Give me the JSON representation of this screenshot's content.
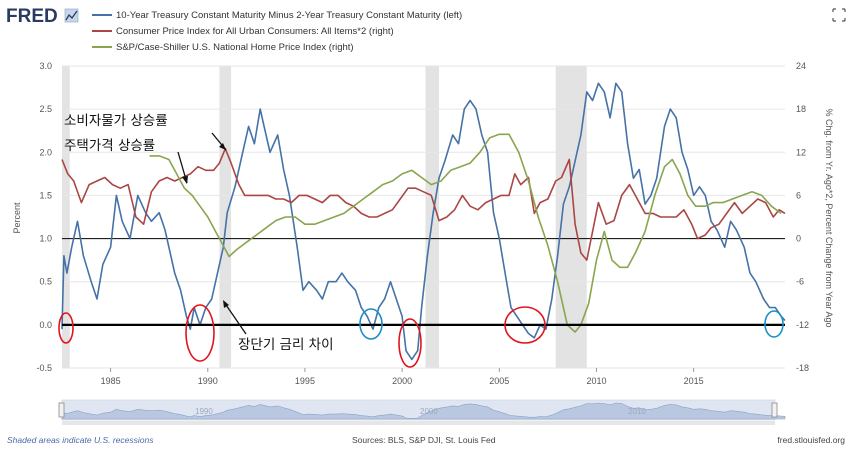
{
  "header": {
    "logo": "FRED",
    "expand_icon": "expand-icon"
  },
  "chart_data": {
    "type": "line",
    "legend": [
      "10-Year Treasury Constant Maturity Minus 2-Year Treasury Constant Maturity (left)",
      "Consumer Price Index for All Urban Consumers: All Items*2 (right)",
      "S&P/Case-Shiller U.S. National Home Price Index (right)"
    ],
    "colors": {
      "spread": "#4572a7",
      "cpi": "#aa4643",
      "hpi": "#89a54e",
      "recession": "#e3e3e3",
      "annotation": "#e0141e",
      "annotation_alt": "#1a8fc9"
    },
    "ylabel_left": "Percent",
    "ylabel_right": "% Chg. from Yr. Ago*2, Percent Change from Year Ago",
    "y_left": {
      "min": -0.5,
      "max": 3.0,
      "ticks": [
        "3.0",
        "2.5",
        "2.0",
        "1.5",
        "1.0",
        "0.5",
        "0.0",
        "-0.5"
      ]
    },
    "y_right": {
      "min": -18,
      "max": 24,
      "ticks": [
        "24",
        "18",
        "12",
        "6",
        "0",
        "-6",
        "-12",
        "-18"
      ]
    },
    "x_range": [
      1982.5,
      2019.7
    ],
    "x_ticks": [
      "1985",
      "1990",
      "1995",
      "2000",
      "2005",
      "2010",
      "2015"
    ],
    "recessions": [
      [
        1982.5,
        1982.9
      ],
      [
        1990.6,
        1991.2
      ],
      [
        2001.2,
        2001.9
      ],
      [
        2007.9,
        2009.5
      ]
    ],
    "series": [
      {
        "name": "spread",
        "points": [
          [
            1982.5,
            -0.05
          ],
          [
            1982.6,
            0.8
          ],
          [
            1982.75,
            0.6
          ],
          [
            1983.0,
            0.9
          ],
          [
            1983.3,
            1.2
          ],
          [
            1983.6,
            0.8
          ],
          [
            1984.0,
            0.5
          ],
          [
            1984.3,
            0.3
          ],
          [
            1984.6,
            0.7
          ],
          [
            1985.0,
            0.9
          ],
          [
            1985.3,
            1.5
          ],
          [
            1985.6,
            1.2
          ],
          [
            1986.0,
            1.0
          ],
          [
            1986.4,
            1.5
          ],
          [
            1986.8,
            1.3
          ],
          [
            1987.1,
            1.2
          ],
          [
            1987.5,
            1.3
          ],
          [
            1987.8,
            1.1
          ],
          [
            1988.0,
            0.9
          ],
          [
            1988.3,
            0.6
          ],
          [
            1988.6,
            0.4
          ],
          [
            1988.9,
            0.1
          ],
          [
            1989.1,
            -0.05
          ],
          [
            1989.3,
            0.2
          ],
          [
            1989.6,
            0.0
          ],
          [
            1989.9,
            0.2
          ],
          [
            1990.2,
            0.3
          ],
          [
            1990.5,
            0.6
          ],
          [
            1990.8,
            0.9
          ],
          [
            1991.0,
            1.3
          ],
          [
            1991.4,
            1.6
          ],
          [
            1991.8,
            2.0
          ],
          [
            1992.1,
            2.3
          ],
          [
            1992.4,
            2.1
          ],
          [
            1992.7,
            2.5
          ],
          [
            1992.9,
            2.3
          ],
          [
            1993.2,
            2.0
          ],
          [
            1993.6,
            2.2
          ],
          [
            1993.9,
            1.8
          ],
          [
            1994.2,
            1.5
          ],
          [
            1994.6,
            0.9
          ],
          [
            1994.9,
            0.4
          ],
          [
            1995.2,
            0.5
          ],
          [
            1995.6,
            0.4
          ],
          [
            1995.9,
            0.3
          ],
          [
            1996.2,
            0.5
          ],
          [
            1996.6,
            0.5
          ],
          [
            1996.9,
            0.6
          ],
          [
            1997.2,
            0.5
          ],
          [
            1997.6,
            0.4
          ],
          [
            1997.9,
            0.2
          ],
          [
            1998.2,
            0.1
          ],
          [
            1998.5,
            -0.05
          ],
          [
            1998.8,
            0.2
          ],
          [
            1999.1,
            0.3
          ],
          [
            1999.4,
            0.5
          ],
          [
            1999.7,
            0.3
          ],
          [
            2000.0,
            0.1
          ],
          [
            2000.2,
            -0.3
          ],
          [
            2000.5,
            -0.4
          ],
          [
            2000.8,
            -0.3
          ],
          [
            2001.0,
            0.2
          ],
          [
            2001.3,
            0.8
          ],
          [
            2001.6,
            1.3
          ],
          [
            2001.9,
            1.7
          ],
          [
            2002.2,
            1.9
          ],
          [
            2002.6,
            2.2
          ],
          [
            2002.9,
            2.1
          ],
          [
            2003.2,
            2.5
          ],
          [
            2003.5,
            2.6
          ],
          [
            2003.8,
            2.5
          ],
          [
            2004.1,
            2.2
          ],
          [
            2004.4,
            2.0
          ],
          [
            2004.7,
            1.3
          ],
          [
            2005.0,
            1.0
          ],
          [
            2005.3,
            0.6
          ],
          [
            2005.6,
            0.2
          ],
          [
            2005.9,
            0.1
          ],
          [
            2006.2,
            0.0
          ],
          [
            2006.5,
            -0.1
          ],
          [
            2006.8,
            -0.15
          ],
          [
            2007.1,
            0.0
          ],
          [
            2007.4,
            -0.05
          ],
          [
            2007.7,
            0.3
          ],
          [
            2008.0,
            0.8
          ],
          [
            2008.3,
            1.4
          ],
          [
            2008.6,
            1.6
          ],
          [
            2008.9,
            1.9
          ],
          [
            2009.2,
            2.2
          ],
          [
            2009.5,
            2.7
          ],
          [
            2009.8,
            2.6
          ],
          [
            2010.1,
            2.8
          ],
          [
            2010.4,
            2.7
          ],
          [
            2010.7,
            2.4
          ],
          [
            2011.0,
            2.8
          ],
          [
            2011.3,
            2.7
          ],
          [
            2011.6,
            2.1
          ],
          [
            2011.9,
            1.7
          ],
          [
            2012.2,
            1.8
          ],
          [
            2012.5,
            1.4
          ],
          [
            2012.8,
            1.5
          ],
          [
            2013.1,
            1.7
          ],
          [
            2013.5,
            2.3
          ],
          [
            2013.8,
            2.5
          ],
          [
            2014.1,
            2.4
          ],
          [
            2014.4,
            2.0
          ],
          [
            2014.7,
            1.8
          ],
          [
            2015.0,
            1.5
          ],
          [
            2015.3,
            1.6
          ],
          [
            2015.6,
            1.5
          ],
          [
            2015.9,
            1.2
          ],
          [
            2016.2,
            1.1
          ],
          [
            2016.6,
            0.9
          ],
          [
            2016.9,
            1.2
          ],
          [
            2017.2,
            1.1
          ],
          [
            2017.6,
            0.9
          ],
          [
            2017.9,
            0.6
          ],
          [
            2018.2,
            0.5
          ],
          [
            2018.6,
            0.3
          ],
          [
            2018.9,
            0.2
          ],
          [
            2019.2,
            0.2
          ],
          [
            2019.5,
            0.1
          ],
          [
            2019.7,
            0.05
          ]
        ]
      },
      {
        "name": "cpi",
        "points": [
          [
            1982.5,
            11
          ],
          [
            1982.8,
            9
          ],
          [
            1983.1,
            8
          ],
          [
            1983.5,
            5
          ],
          [
            1983.9,
            7.5
          ],
          [
            1984.3,
            8
          ],
          [
            1984.7,
            8.5
          ],
          [
            1985.1,
            7.5
          ],
          [
            1985.5,
            7
          ],
          [
            1985.9,
            7.5
          ],
          [
            1986.3,
            3
          ],
          [
            1986.7,
            2
          ],
          [
            1987.1,
            6.5
          ],
          [
            1987.5,
            8
          ],
          [
            1987.9,
            8.5
          ],
          [
            1988.3,
            8
          ],
          [
            1988.7,
            8.5
          ],
          [
            1989.1,
            9
          ],
          [
            1989.5,
            10
          ],
          [
            1989.9,
            9.5
          ],
          [
            1990.3,
            9.5
          ],
          [
            1990.6,
            10.5
          ],
          [
            1990.9,
            12.5
          ],
          [
            1991.2,
            10.5
          ],
          [
            1991.6,
            7.5
          ],
          [
            1991.9,
            6
          ],
          [
            1992.3,
            6
          ],
          [
            1992.7,
            6
          ],
          [
            1993.1,
            6
          ],
          [
            1993.5,
            5.5
          ],
          [
            1993.9,
            5.5
          ],
          [
            1994.3,
            5
          ],
          [
            1994.7,
            6
          ],
          [
            1995.1,
            6
          ],
          [
            1995.5,
            5.5
          ],
          [
            1995.9,
            5
          ],
          [
            1996.3,
            6
          ],
          [
            1996.7,
            6
          ],
          [
            1997.1,
            5
          ],
          [
            1997.5,
            4.5
          ],
          [
            1997.9,
            3.5
          ],
          [
            1998.3,
            3
          ],
          [
            1998.7,
            3
          ],
          [
            1999.1,
            3.5
          ],
          [
            1999.5,
            4
          ],
          [
            1999.9,
            5.5
          ],
          [
            2000.3,
            7
          ],
          [
            2000.7,
            7
          ],
          [
            2001.1,
            6.5
          ],
          [
            2001.5,
            6
          ],
          [
            2001.9,
            2.5
          ],
          [
            2002.3,
            3
          ],
          [
            2002.7,
            4
          ],
          [
            2003.1,
            6
          ],
          [
            2003.5,
            4.5
          ],
          [
            2003.9,
            4
          ],
          [
            2004.3,
            5
          ],
          [
            2004.7,
            5.5
          ],
          [
            2005.1,
            6
          ],
          [
            2005.5,
            6
          ],
          [
            2005.8,
            9
          ],
          [
            2006.1,
            7.5
          ],
          [
            2006.5,
            8.5
          ],
          [
            2006.8,
            3.5
          ],
          [
            2007.1,
            5
          ],
          [
            2007.5,
            5.5
          ],
          [
            2007.9,
            8
          ],
          [
            2008.2,
            8.5
          ],
          [
            2008.6,
            11
          ],
          [
            2008.9,
            2
          ],
          [
            2009.2,
            -2
          ],
          [
            2009.5,
            -3
          ],
          [
            2009.8,
            1
          ],
          [
            2010.1,
            5
          ],
          [
            2010.5,
            2
          ],
          [
            2010.9,
            2.5
          ],
          [
            2011.3,
            6
          ],
          [
            2011.7,
            7.5
          ],
          [
            2012.1,
            5.5
          ],
          [
            2012.5,
            3.5
          ],
          [
            2012.9,
            3.5
          ],
          [
            2013.3,
            3
          ],
          [
            2013.7,
            3
          ],
          [
            2014.1,
            3
          ],
          [
            2014.5,
            4
          ],
          [
            2014.9,
            2
          ],
          [
            2015.2,
            0
          ],
          [
            2015.6,
            0.5
          ],
          [
            2015.9,
            1.5
          ],
          [
            2016.3,
            2
          ],
          [
            2016.7,
            3.5
          ],
          [
            2017.1,
            5
          ],
          [
            2017.5,
            3.5
          ],
          [
            2017.9,
            4.5
          ],
          [
            2018.3,
            5.5
          ],
          [
            2018.7,
            5
          ],
          [
            2019.1,
            3
          ],
          [
            2019.4,
            4
          ],
          [
            2019.7,
            3.5
          ]
        ]
      },
      {
        "name": "hpi",
        "points": [
          [
            1987.0,
            11.5
          ],
          [
            1987.5,
            11.5
          ],
          [
            1988.0,
            11
          ],
          [
            1988.4,
            9
          ],
          [
            1988.8,
            7
          ],
          [
            1989.2,
            6
          ],
          [
            1989.6,
            4.5
          ],
          [
            1990.0,
            3
          ],
          [
            1990.4,
            1
          ],
          [
            1990.8,
            -1
          ],
          [
            1991.1,
            -2.5
          ],
          [
            1991.5,
            -1.5
          ],
          [
            1992.0,
            -0.5
          ],
          [
            1992.5,
            0.5
          ],
          [
            1993.0,
            1.5
          ],
          [
            1993.5,
            2.5
          ],
          [
            1994.0,
            3
          ],
          [
            1994.5,
            3
          ],
          [
            1995.0,
            2
          ],
          [
            1995.5,
            2
          ],
          [
            1996.0,
            2.5
          ],
          [
            1996.5,
            3
          ],
          [
            1997.0,
            3.5
          ],
          [
            1997.5,
            4.5
          ],
          [
            1998.0,
            5.5
          ],
          [
            1998.5,
            6.5
          ],
          [
            1999.0,
            7.5
          ],
          [
            1999.5,
            8
          ],
          [
            2000.0,
            9
          ],
          [
            2000.5,
            9.5
          ],
          [
            2001.0,
            8.5
          ],
          [
            2001.5,
            7.5
          ],
          [
            2002.0,
            8
          ],
          [
            2002.5,
            9.5
          ],
          [
            2003.0,
            10
          ],
          [
            2003.5,
            10.5
          ],
          [
            2004.0,
            12
          ],
          [
            2004.5,
            14
          ],
          [
            2005.0,
            14.5
          ],
          [
            2005.5,
            14.5
          ],
          [
            2006.0,
            12
          ],
          [
            2006.5,
            8
          ],
          [
            2007.0,
            3
          ],
          [
            2007.5,
            -1
          ],
          [
            2008.0,
            -6
          ],
          [
            2008.5,
            -12
          ],
          [
            2008.9,
            -13
          ],
          [
            2009.2,
            -12
          ],
          [
            2009.6,
            -9
          ],
          [
            2010.0,
            -3
          ],
          [
            2010.4,
            1
          ],
          [
            2010.8,
            -3
          ],
          [
            2011.2,
            -4
          ],
          [
            2011.6,
            -4
          ],
          [
            2012.0,
            -2
          ],
          [
            2012.5,
            1
          ],
          [
            2013.0,
            6
          ],
          [
            2013.5,
            10
          ],
          [
            2013.9,
            11
          ],
          [
            2014.3,
            9
          ],
          [
            2014.7,
            6
          ],
          [
            2015.1,
            4.5
          ],
          [
            2015.6,
            4.5
          ],
          [
            2016.0,
            5
          ],
          [
            2016.5,
            5
          ],
          [
            2017.0,
            5.5
          ],
          [
            2017.5,
            6
          ],
          [
            2018.0,
            6.5
          ],
          [
            2018.5,
            6
          ],
          [
            2019.0,
            4.5
          ],
          [
            2019.5,
            3.5
          ]
        ]
      }
    ],
    "annotations": {
      "cpi_label": "소비자물가 상승률",
      "hpi_label": "주택가격 상승률",
      "spread_label": "장단기 금리 차이"
    },
    "range_selector_years": [
      "1990",
      "2000",
      "2010"
    ],
    "footnote": "Shaded areas indicate U.S. recessions",
    "sources": "Sources: BLS, S&P DJI, St. Louis Fed",
    "site": "fred.stlouisfed.org"
  }
}
